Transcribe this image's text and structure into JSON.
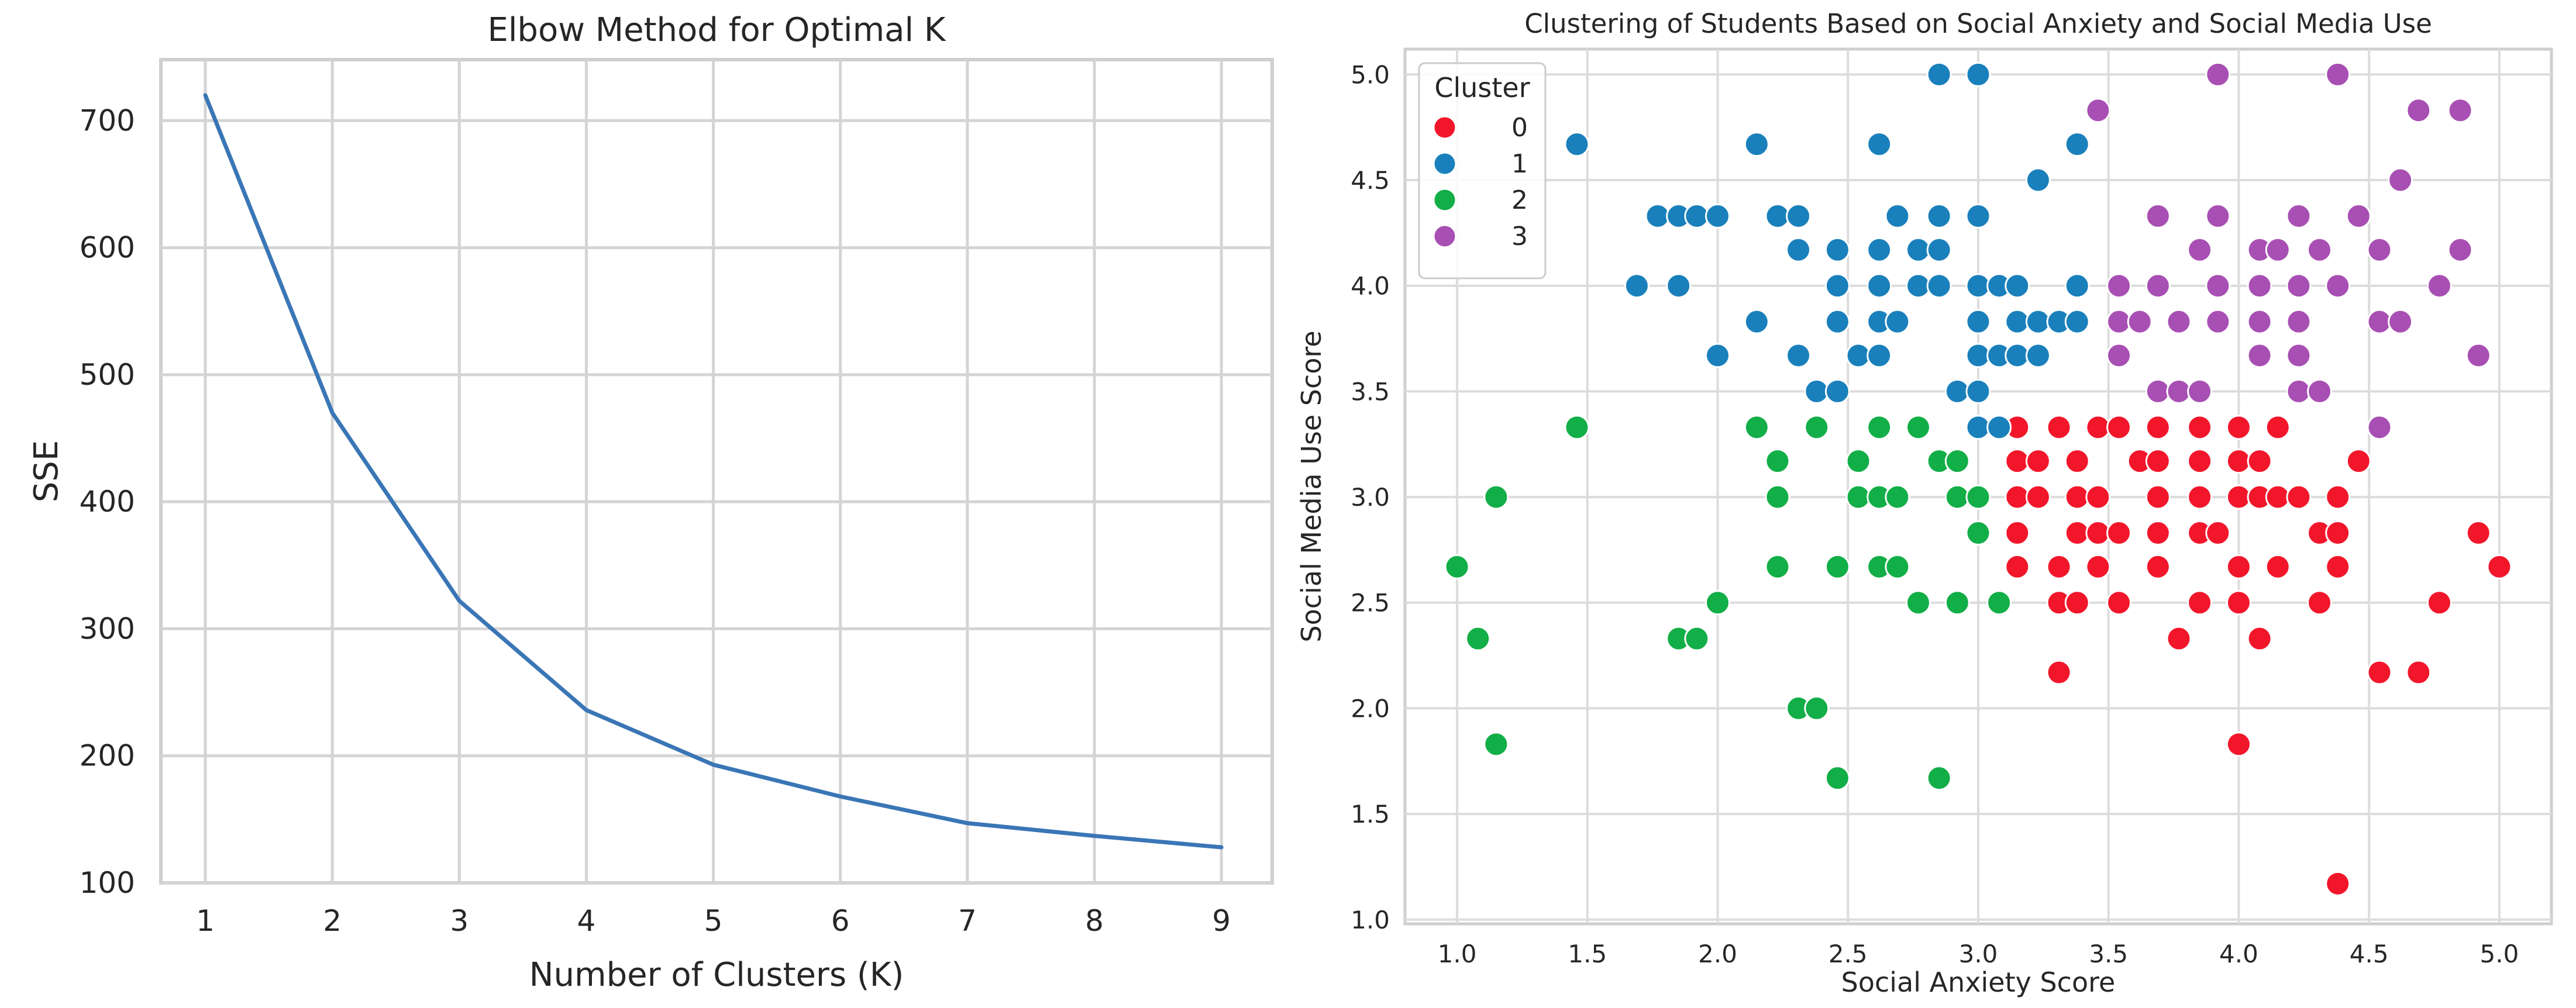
{
  "chart_data": [
    {
      "type": "line",
      "title": "Elbow Method for Optimal K",
      "xlabel": "Number of Clusters (K)",
      "ylabel": "SSE",
      "x": [
        1,
        2,
        3,
        4,
        5,
        6,
        7,
        8,
        9
      ],
      "series": [
        {
          "name": "SSE",
          "values": [
            720,
            470,
            322,
            236,
            193,
            168,
            147,
            137,
            128
          ],
          "color": "#3a76b6"
        }
      ],
      "xticks": [
        1,
        2,
        3,
        4,
        5,
        6,
        7,
        8,
        9
      ],
      "yticks": [
        100,
        200,
        300,
        400,
        500,
        600,
        700
      ],
      "xlim": [
        0.65,
        9.4
      ],
      "ylim": [
        100,
        748
      ],
      "grid": true
    },
    {
      "type": "scatter",
      "title": "Clustering of Students Based on Social Anxiety and Social Media Use",
      "xlabel": "Social Anxiety Score",
      "ylabel": "Social Media Use Score",
      "xticks": [
        "1.0",
        "1.5",
        "2.0",
        "2.5",
        "3.0",
        "3.5",
        "4.0",
        "4.5",
        "5.0"
      ],
      "yticks": [
        "1.0",
        "1.5",
        "2.0",
        "2.5",
        "3.0",
        "3.5",
        "4.0",
        "4.5",
        "5.0"
      ],
      "xlim": [
        0.8,
        5.2
      ],
      "ylim": [
        0.98,
        5.12
      ],
      "grid": true,
      "legend": {
        "title": "Cluster",
        "placement": "top-left"
      },
      "series": [
        {
          "name": "0",
          "color": "#f2162b",
          "points": [
            [
              3.15,
              3.33
            ],
            [
              3.31,
              3.33
            ],
            [
              3.46,
              3.33
            ],
            [
              3.54,
              3.33
            ],
            [
              3.69,
              3.33
            ],
            [
              3.85,
              3.33
            ],
            [
              4.0,
              3.33
            ],
            [
              4.15,
              3.33
            ],
            [
              3.15,
              3.17
            ],
            [
              3.23,
              3.17
            ],
            [
              3.38,
              3.17
            ],
            [
              3.62,
              3.17
            ],
            [
              3.69,
              3.17
            ],
            [
              3.85,
              3.17
            ],
            [
              4.0,
              3.17
            ],
            [
              4.08,
              3.17
            ],
            [
              4.46,
              3.17
            ],
            [
              3.15,
              3.0
            ],
            [
              3.23,
              3.0
            ],
            [
              3.38,
              3.0
            ],
            [
              3.46,
              3.0
            ],
            [
              3.69,
              3.0
            ],
            [
              3.85,
              3.0
            ],
            [
              4.0,
              3.0
            ],
            [
              4.08,
              3.0
            ],
            [
              4.15,
              3.0
            ],
            [
              4.23,
              3.0
            ],
            [
              4.38,
              3.0
            ],
            [
              3.15,
              2.83
            ],
            [
              3.38,
              2.83
            ],
            [
              3.46,
              2.83
            ],
            [
              3.54,
              2.83
            ],
            [
              3.69,
              2.83
            ],
            [
              3.85,
              2.83
            ],
            [
              3.92,
              2.83
            ],
            [
              4.31,
              2.83
            ],
            [
              4.38,
              2.83
            ],
            [
              4.92,
              2.83
            ],
            [
              3.15,
              2.67
            ],
            [
              3.31,
              2.67
            ],
            [
              3.46,
              2.67
            ],
            [
              3.69,
              2.67
            ],
            [
              4.0,
              2.67
            ],
            [
              4.15,
              2.67
            ],
            [
              4.38,
              2.67
            ],
            [
              5.0,
              2.67
            ],
            [
              3.31,
              2.5
            ],
            [
              3.38,
              2.5
            ],
            [
              3.54,
              2.5
            ],
            [
              3.85,
              2.5
            ],
            [
              4.0,
              2.5
            ],
            [
              4.31,
              2.5
            ],
            [
              4.77,
              2.5
            ],
            [
              3.77,
              2.33
            ],
            [
              4.08,
              2.33
            ],
            [
              3.31,
              2.17
            ],
            [
              4.54,
              2.17
            ],
            [
              4.69,
              2.17
            ],
            [
              4.0,
              1.83
            ],
            [
              4.38,
              1.17
            ]
          ]
        },
        {
          "name": "1",
          "color": "#1a80bb",
          "points": [
            [
              2.85,
              5.0
            ],
            [
              3.0,
              5.0
            ],
            [
              1.46,
              4.67
            ],
            [
              2.15,
              4.67
            ],
            [
              2.62,
              4.67
            ],
            [
              3.38,
              4.67
            ],
            [
              3.23,
              4.5
            ],
            [
              1.77,
              4.33
            ],
            [
              1.85,
              4.33
            ],
            [
              1.92,
              4.33
            ],
            [
              2.0,
              4.33
            ],
            [
              2.23,
              4.33
            ],
            [
              2.31,
              4.33
            ],
            [
              2.69,
              4.33
            ],
            [
              2.85,
              4.33
            ],
            [
              3.0,
              4.33
            ],
            [
              2.31,
              4.17
            ],
            [
              2.46,
              4.17
            ],
            [
              2.62,
              4.17
            ],
            [
              2.77,
              4.17
            ],
            [
              2.85,
              4.17
            ],
            [
              1.69,
              4.0
            ],
            [
              1.85,
              4.0
            ],
            [
              2.46,
              4.0
            ],
            [
              2.62,
              4.0
            ],
            [
              2.77,
              4.0
            ],
            [
              2.85,
              4.0
            ],
            [
              3.0,
              4.0
            ],
            [
              3.08,
              4.0
            ],
            [
              3.15,
              4.0
            ],
            [
              3.38,
              4.0
            ],
            [
              2.15,
              3.83
            ],
            [
              2.46,
              3.83
            ],
            [
              2.62,
              3.83
            ],
            [
              2.69,
              3.83
            ],
            [
              3.0,
              3.83
            ],
            [
              3.15,
              3.83
            ],
            [
              3.23,
              3.83
            ],
            [
              3.31,
              3.83
            ],
            [
              3.38,
              3.83
            ],
            [
              2.0,
              3.67
            ],
            [
              2.31,
              3.67
            ],
            [
              2.54,
              3.67
            ],
            [
              2.62,
              3.67
            ],
            [
              3.0,
              3.67
            ],
            [
              3.08,
              3.67
            ],
            [
              3.15,
              3.67
            ],
            [
              3.23,
              3.67
            ],
            [
              2.38,
              3.5
            ],
            [
              2.46,
              3.5
            ],
            [
              2.92,
              3.5
            ],
            [
              3.0,
              3.5
            ],
            [
              3.0,
              3.33
            ],
            [
              3.08,
              3.33
            ]
          ]
        },
        {
          "name": "2",
          "color": "#12ae47",
          "points": [
            [
              1.46,
              3.33
            ],
            [
              2.15,
              3.33
            ],
            [
              2.38,
              3.33
            ],
            [
              2.62,
              3.33
            ],
            [
              2.77,
              3.33
            ],
            [
              2.23,
              3.17
            ],
            [
              2.54,
              3.17
            ],
            [
              2.85,
              3.17
            ],
            [
              2.92,
              3.17
            ],
            [
              1.15,
              3.0
            ],
            [
              2.23,
              3.0
            ],
            [
              2.54,
              3.0
            ],
            [
              2.62,
              3.0
            ],
            [
              2.69,
              3.0
            ],
            [
              2.92,
              3.0
            ],
            [
              3.0,
              3.0
            ],
            [
              3.0,
              2.83
            ],
            [
              1.0,
              2.67
            ],
            [
              2.23,
              2.67
            ],
            [
              2.46,
              2.67
            ],
            [
              2.62,
              2.67
            ],
            [
              2.69,
              2.67
            ],
            [
              2.0,
              2.5
            ],
            [
              2.77,
              2.5
            ],
            [
              2.92,
              2.5
            ],
            [
              3.08,
              2.5
            ],
            [
              1.08,
              2.33
            ],
            [
              1.85,
              2.33
            ],
            [
              1.92,
              2.33
            ],
            [
              2.31,
              2.0
            ],
            [
              2.38,
              2.0
            ],
            [
              1.15,
              1.83
            ],
            [
              2.46,
              1.67
            ],
            [
              2.85,
              1.67
            ]
          ]
        },
        {
          "name": "3",
          "color": "#a84fb3",
          "points": [
            [
              3.92,
              5.0
            ],
            [
              4.38,
              5.0
            ],
            [
              3.46,
              4.83
            ],
            [
              4.69,
              4.83
            ],
            [
              4.85,
              4.83
            ],
            [
              4.62,
              4.5
            ],
            [
              3.69,
              4.33
            ],
            [
              3.92,
              4.33
            ],
            [
              4.23,
              4.33
            ],
            [
              4.46,
              4.33
            ],
            [
              3.85,
              4.17
            ],
            [
              4.08,
              4.17
            ],
            [
              4.15,
              4.17
            ],
            [
              4.31,
              4.17
            ],
            [
              4.54,
              4.17
            ],
            [
              4.85,
              4.17
            ],
            [
              3.54,
              4.0
            ],
            [
              3.69,
              4.0
            ],
            [
              3.92,
              4.0
            ],
            [
              4.08,
              4.0
            ],
            [
              4.23,
              4.0
            ],
            [
              4.38,
              4.0
            ],
            [
              4.77,
              4.0
            ],
            [
              3.54,
              3.83
            ],
            [
              3.62,
              3.83
            ],
            [
              3.77,
              3.83
            ],
            [
              3.92,
              3.83
            ],
            [
              4.08,
              3.83
            ],
            [
              4.23,
              3.83
            ],
            [
              4.54,
              3.83
            ],
            [
              4.62,
              3.83
            ],
            [
              3.54,
              3.67
            ],
            [
              4.08,
              3.67
            ],
            [
              4.23,
              3.67
            ],
            [
              4.92,
              3.67
            ],
            [
              3.69,
              3.5
            ],
            [
              3.77,
              3.5
            ],
            [
              3.85,
              3.5
            ],
            [
              4.23,
              3.5
            ],
            [
              4.31,
              3.5
            ],
            [
              4.54,
              3.33
            ]
          ]
        }
      ]
    }
  ]
}
